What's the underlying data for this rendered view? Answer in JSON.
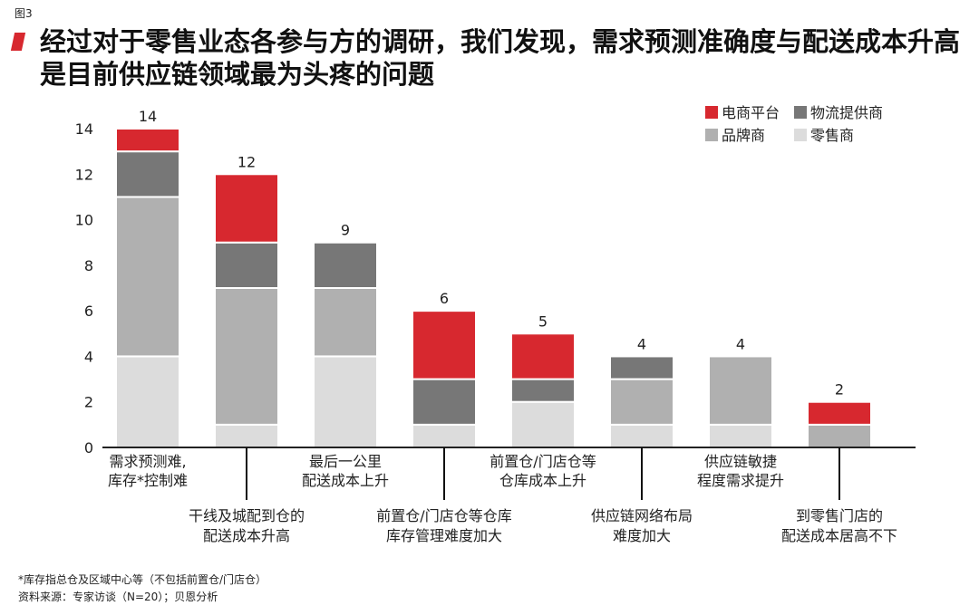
{
  "figure_label": "图3",
  "title": "经过对于零售业态各参与方的调研，我们发现，需求预测准确度与配送成本升高是目前供应链领域最为头疼的问题",
  "footnotes": {
    "note": "*库存指总仓及区域中心等（不包括前置仓/门店仓）",
    "source": "资料来源：专家访谈（N=20）；贝恩分析"
  },
  "chart_data": {
    "type": "bar",
    "stacked": true,
    "title": "",
    "xlabel": "",
    "ylabel": "",
    "ylim": [
      0,
      14
    ],
    "yticks": [
      0,
      2,
      4,
      6,
      8,
      10,
      12,
      14
    ],
    "grid": false,
    "legend_position": "top-right",
    "categories": [
      [
        "需求预测难,",
        "库存*控制难"
      ],
      [
        "干线及城配到仓的",
        "配送成本升高"
      ],
      [
        "最后一公里",
        "配送成本上升"
      ],
      [
        "前置仓/门店仓等仓库",
        "库存管理难度加大"
      ],
      [
        "前置仓/门店仓等",
        "仓库成本上升"
      ],
      [
        "供应链网络布局",
        "难度加大"
      ],
      [
        "供应链敏捷",
        "程度需求提升"
      ],
      [
        "到零售门店的",
        "配送成本居高不下"
      ]
    ],
    "totals": [
      14,
      12,
      9,
      6,
      5,
      4,
      4,
      2
    ],
    "series": [
      {
        "name": "零售商",
        "color": "#dcdcdc",
        "values": [
          4,
          1,
          4,
          1,
          2,
          1,
          1,
          0
        ]
      },
      {
        "name": "品牌商",
        "color": "#b0b0b0",
        "values": [
          7,
          6,
          3,
          0,
          0,
          2,
          3,
          1
        ]
      },
      {
        "name": "物流提供商",
        "color": "#777777",
        "values": [
          2,
          2,
          2,
          2,
          1,
          1,
          0,
          0
        ]
      },
      {
        "name": "电商平台",
        "color": "#d7282f",
        "values": [
          1,
          3,
          0,
          3,
          2,
          0,
          0,
          1
        ]
      }
    ],
    "legend_order": [
      "电商平台",
      "物流提供商",
      "品牌商",
      "零售商"
    ]
  }
}
